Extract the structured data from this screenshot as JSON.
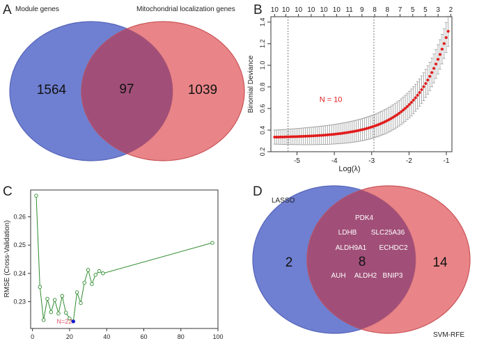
{
  "panels": {
    "A": {
      "letter": "A",
      "left_label": "Module genes",
      "right_label": "Mitochondrial localization genes",
      "left_only": "1564",
      "overlap": "97",
      "right_only": "1039",
      "colors": {
        "left": "#6f7fd1",
        "right": "#e46a6e",
        "overlap": "#a14f78"
      }
    },
    "B": {
      "letter": "B"
    },
    "C": {
      "letter": "C"
    },
    "D": {
      "letter": "D",
      "left_label": "LASSO",
      "right_label": "SVM-RFE",
      "left_only": "2",
      "overlap": "8",
      "right_only": "14",
      "genes": [
        "PDK4",
        "LDHB",
        "SLC25A36",
        "ALDH9A1",
        "ECHDC2",
        "AUH",
        "ALDH2",
        "BNIP3"
      ],
      "colors": {
        "left": "#6f7fd1",
        "right": "#e46a6e",
        "overlap": "#a14f78"
      }
    }
  },
  "chart_data": [
    {
      "panel": "B",
      "type": "line",
      "title": "",
      "xlabel": "Log(λ)",
      "ylabel": "Binomial Deviance",
      "xlim": [
        -5.7,
        -0.85
      ],
      "ylim": [
        0.2,
        1.45
      ],
      "x_ticks": [
        -5,
        -4,
        -3,
        -2,
        -1
      ],
      "y_ticks": [
        0.2,
        0.4,
        0.6,
        0.8,
        1.0,
        1.2,
        1.4
      ],
      "x_tick_labels": [
        "-5",
        "-4",
        "-3",
        "-2",
        "-1"
      ],
      "y_tick_labels": [
        "0.2",
        "0.4",
        "0.6",
        "0.8",
        "1.0",
        "1.2",
        "1.4"
      ],
      "top_axis_labels": [
        "10",
        "10",
        "10",
        "10",
        "10",
        "10",
        "11",
        "9",
        "8",
        "8",
        "7",
        "5",
        "5",
        "3",
        "2"
      ],
      "top_axis_positions": [
        -5.6,
        -5.3,
        -4.96,
        -4.62,
        -4.28,
        -3.94,
        -3.6,
        -3.26,
        -2.92,
        -2.58,
        -2.24,
        -1.9,
        -1.56,
        -1.22,
        -0.88
      ],
      "vlines": [
        -5.24,
        -2.94
      ],
      "annotation": "N = 10",
      "annotation_position": [
        -4.4,
        0.66
      ],
      "series": [
        {
          "name": "cv-deviance",
          "x_range": [
            -5.6,
            -0.95
          ],
          "n_points": 86,
          "y_model": {
            "base": 0.335,
            "scale": 0.98,
            "rate": 1.12,
            "x0": -5.6
          },
          "error_model": {
            "base": 0.065,
            "slope": 0.016
          }
        }
      ]
    },
    {
      "panel": "C",
      "type": "line",
      "title": "",
      "xlabel": "",
      "ylabel": "RMSE (Cross-Validation)",
      "xlim": [
        -1,
        100
      ],
      "ylim": [
        0.2205,
        0.2695
      ],
      "x_ticks": [
        0,
        20,
        40,
        60,
        80,
        100
      ],
      "y_ticks": [
        0.23,
        0.24,
        0.25,
        0.26
      ],
      "x_tick_labels": [
        "0",
        "20",
        "40",
        "60",
        "80",
        "100"
      ],
      "y_tick_labels": [
        "0.23",
        "0.24",
        "0.25",
        "0.26"
      ],
      "series": [
        {
          "name": "rmse",
          "x": [
            2,
            4,
            6,
            8,
            10,
            12,
            14,
            16,
            18,
            20,
            22,
            24,
            26,
            28,
            30,
            32,
            34,
            36,
            38,
            97
          ],
          "y": [
            0.2675,
            0.2352,
            0.2235,
            0.231,
            0.2263,
            0.2306,
            0.2258,
            0.232,
            0.2261,
            0.224,
            0.223,
            0.2333,
            0.2295,
            0.2367,
            0.2412,
            0.2362,
            0.2395,
            0.2408,
            0.24,
            0.2508
          ],
          "color": "#2e8b2e"
        }
      ],
      "highlight": {
        "x": 22,
        "y": 0.223,
        "label": "N=22",
        "color": "#1a1ad9"
      }
    }
  ]
}
